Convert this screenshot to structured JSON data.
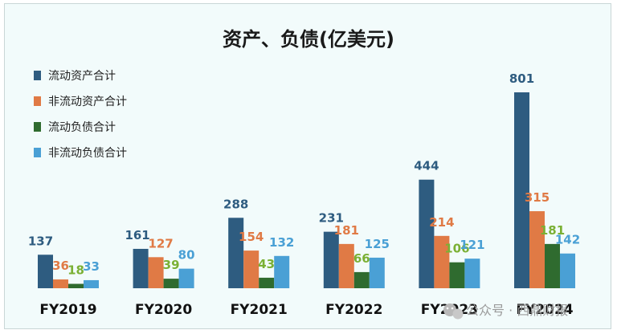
{
  "chart_data": {
    "type": "bar",
    "title": "资产、负债(亿美元)",
    "categories": [
      "FY2019",
      "FY2020",
      "FY2021",
      "FY2022",
      "FY2023",
      "FY2024"
    ],
    "series": [
      {
        "name": "流动资产合计",
        "color": "#2e5c80",
        "values": [
          137,
          161,
          288,
          231,
          444,
          801
        ]
      },
      {
        "name": "非流动资产合计",
        "color": "#e07a45",
        "values": [
          36,
          127,
          154,
          181,
          214,
          315
        ]
      },
      {
        "name": "流动负债合计",
        "color": "#2f6b2f",
        "values": [
          18,
          39,
          43,
          66,
          106,
          181
        ]
      },
      {
        "name": "非流动负债合计",
        "color": "#4aa0d5",
        "values": [
          33,
          80,
          132,
          125,
          121,
          142
        ]
      }
    ],
    "label_colors": [
      "#2e5c80",
      "#e07a45",
      "#7ab034",
      "#4aa0d5"
    ],
    "ylim": [
      0,
      900
    ],
    "grid": false,
    "legend_position": "top-left"
  },
  "watermark": {
    "icon": "wechat-icon",
    "text": "公众号 · 西鼎财报"
  }
}
